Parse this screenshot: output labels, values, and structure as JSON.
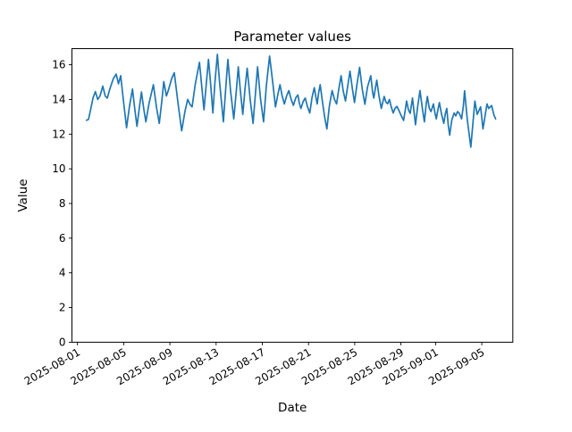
{
  "figure": {
    "background": "#ffffff",
    "text_color": "#000000"
  },
  "chart_data": {
    "type": "line",
    "title": "Parameter values",
    "xlabel": "Date",
    "ylabel": "Value",
    "line_color": "#1f77b4",
    "grid": false,
    "legend": "none",
    "ylim": [
      0,
      16.93
    ],
    "xlim_days_from_2025_08_01": [
      -0.45,
      37.7
    ],
    "y_ticks": [
      0,
      2,
      4,
      6,
      8,
      10,
      12,
      14,
      16
    ],
    "x_ticks": [
      {
        "label": "2025-08-01",
        "day": 0
      },
      {
        "label": "2025-08-05",
        "day": 4
      },
      {
        "label": "2025-08-09",
        "day": 8
      },
      {
        "label": "2025-08-13",
        "day": 12
      },
      {
        "label": "2025-08-17",
        "day": 16
      },
      {
        "label": "2025-08-21",
        "day": 20
      },
      {
        "label": "2025-08-25",
        "day": 24
      },
      {
        "label": "2025-08-29",
        "day": 28
      },
      {
        "label": "2025-09-01",
        "day": 31
      },
      {
        "label": "2025-09-05",
        "day": 35
      }
    ],
    "series": [
      {
        "name": "parameter-values",
        "x_unit": "days_from_2025-08-01",
        "points": [
          [
            0.78,
            12.8
          ],
          [
            0.95,
            12.85
          ],
          [
            1.1,
            13.3
          ],
          [
            1.35,
            14.1
          ],
          [
            1.55,
            14.45
          ],
          [
            1.75,
            14.0
          ],
          [
            1.95,
            14.2
          ],
          [
            2.19,
            14.77
          ],
          [
            2.4,
            14.2
          ],
          [
            2.58,
            14.08
          ],
          [
            2.8,
            14.6
          ],
          [
            3.1,
            15.2
          ],
          [
            3.35,
            15.46
          ],
          [
            3.55,
            14.9
          ],
          [
            3.74,
            15.37
          ],
          [
            4.0,
            13.8
          ],
          [
            4.25,
            12.37
          ],
          [
            4.5,
            13.6
          ],
          [
            4.76,
            14.6
          ],
          [
            4.95,
            13.5
          ],
          [
            5.15,
            12.45
          ],
          [
            5.35,
            13.5
          ],
          [
            5.54,
            14.43
          ],
          [
            5.75,
            13.4
          ],
          [
            5.92,
            12.71
          ],
          [
            6.2,
            13.8
          ],
          [
            6.57,
            14.85
          ],
          [
            6.85,
            13.5
          ],
          [
            7.08,
            12.62
          ],
          [
            7.3,
            13.9
          ],
          [
            7.47,
            15.03
          ],
          [
            7.7,
            14.2
          ],
          [
            7.9,
            14.6
          ],
          [
            8.15,
            15.2
          ],
          [
            8.38,
            15.54
          ],
          [
            8.7,
            13.8
          ],
          [
            9.02,
            12.19
          ],
          [
            9.3,
            13.3
          ],
          [
            9.54,
            14.0
          ],
          [
            9.75,
            13.7
          ],
          [
            9.92,
            13.57
          ],
          [
            10.2,
            14.9
          ],
          [
            10.56,
            16.14
          ],
          [
            10.75,
            14.8
          ],
          [
            10.95,
            13.4
          ],
          [
            11.15,
            14.9
          ],
          [
            11.34,
            16.31
          ],
          [
            11.55,
            14.7
          ],
          [
            11.72,
            13.22
          ],
          [
            11.9,
            15.0
          ],
          [
            12.11,
            16.6
          ],
          [
            12.3,
            15.0
          ],
          [
            12.63,
            12.71
          ],
          [
            12.85,
            14.8
          ],
          [
            13.02,
            16.31
          ],
          [
            13.25,
            14.5
          ],
          [
            13.53,
            12.88
          ],
          [
            13.75,
            14.5
          ],
          [
            13.92,
            15.88
          ],
          [
            14.1,
            14.5
          ],
          [
            14.31,
            13.14
          ],
          [
            14.5,
            14.6
          ],
          [
            14.69,
            15.8
          ],
          [
            14.95,
            14.0
          ],
          [
            15.2,
            12.62
          ],
          [
            15.4,
            14.3
          ],
          [
            15.59,
            15.88
          ],
          [
            15.85,
            14.0
          ],
          [
            16.11,
            12.71
          ],
          [
            16.35,
            14.8
          ],
          [
            16.63,
            16.5
          ],
          [
            16.9,
            15.0
          ],
          [
            17.14,
            13.57
          ],
          [
            17.35,
            14.3
          ],
          [
            17.53,
            14.85
          ],
          [
            17.72,
            14.2
          ],
          [
            17.91,
            13.74
          ],
          [
            18.1,
            14.2
          ],
          [
            18.3,
            14.51
          ],
          [
            18.5,
            14.0
          ],
          [
            18.69,
            13.66
          ],
          [
            18.9,
            14.1
          ],
          [
            19.08,
            14.26
          ],
          [
            19.2,
            13.8
          ],
          [
            19.34,
            13.48
          ],
          [
            19.55,
            13.9
          ],
          [
            19.72,
            14.08
          ],
          [
            19.9,
            13.6
          ],
          [
            20.11,
            13.22
          ],
          [
            20.3,
            14.1
          ],
          [
            20.5,
            14.68
          ],
          [
            20.65,
            14.1
          ],
          [
            20.75,
            13.74
          ],
          [
            20.88,
            14.4
          ],
          [
            21.01,
            14.85
          ],
          [
            21.2,
            13.9
          ],
          [
            21.4,
            12.97
          ],
          [
            21.59,
            12.3
          ],
          [
            21.8,
            13.6
          ],
          [
            22.04,
            14.51
          ],
          [
            22.25,
            14.0
          ],
          [
            22.43,
            13.74
          ],
          [
            22.62,
            14.6
          ],
          [
            22.82,
            15.37
          ],
          [
            23.0,
            14.5
          ],
          [
            23.2,
            13.91
          ],
          [
            23.4,
            14.8
          ],
          [
            23.59,
            15.63
          ],
          [
            23.8,
            14.6
          ],
          [
            23.98,
            13.82
          ],
          [
            24.2,
            14.9
          ],
          [
            24.42,
            15.85
          ],
          [
            24.65,
            14.6
          ],
          [
            24.88,
            13.72
          ],
          [
            25.1,
            14.7
          ],
          [
            25.39,
            15.37
          ],
          [
            25.55,
            14.4
          ],
          [
            25.65,
            14.08
          ],
          [
            25.8,
            14.7
          ],
          [
            25.91,
            15.11
          ],
          [
            26.1,
            14.2
          ],
          [
            26.3,
            13.48
          ],
          [
            26.45,
            13.9
          ],
          [
            26.55,
            14.17
          ],
          [
            26.7,
            13.85
          ],
          [
            26.85,
            13.75
          ],
          [
            27.0,
            14.0
          ],
          [
            27.15,
            13.6
          ],
          [
            27.33,
            13.22
          ],
          [
            27.5,
            13.5
          ],
          [
            27.65,
            13.6
          ],
          [
            27.8,
            13.4
          ],
          [
            28.0,
            13.1
          ],
          [
            28.23,
            12.79
          ],
          [
            28.4,
            13.5
          ],
          [
            28.49,
            13.91
          ],
          [
            28.65,
            13.4
          ],
          [
            28.8,
            13.2
          ],
          [
            29.0,
            14.08
          ],
          [
            29.13,
            13.3
          ],
          [
            29.26,
            12.54
          ],
          [
            29.45,
            13.6
          ],
          [
            29.65,
            14.51
          ],
          [
            29.85,
            13.5
          ],
          [
            30.03,
            12.71
          ],
          [
            30.18,
            13.7
          ],
          [
            30.29,
            14.17
          ],
          [
            30.45,
            13.5
          ],
          [
            30.6,
            13.3
          ],
          [
            30.81,
            13.74
          ],
          [
            30.95,
            13.2
          ],
          [
            31.06,
            12.88
          ],
          [
            31.2,
            13.4
          ],
          [
            31.33,
            13.82
          ],
          [
            31.5,
            13.2
          ],
          [
            31.71,
            12.62
          ],
          [
            31.85,
            13.2
          ],
          [
            31.97,
            13.48
          ],
          [
            32.1,
            12.5
          ],
          [
            32.22,
            11.94
          ],
          [
            32.4,
            12.8
          ],
          [
            32.61,
            13.22
          ],
          [
            32.75,
            13.05
          ],
          [
            32.9,
            13.3
          ],
          [
            33.05,
            13.2
          ],
          [
            33.25,
            12.88
          ],
          [
            33.4,
            13.6
          ],
          [
            33.51,
            14.5
          ],
          [
            33.75,
            12.8
          ],
          [
            34.05,
            11.25
          ],
          [
            34.4,
            13.91
          ],
          [
            34.6,
            13.14
          ],
          [
            34.9,
            13.57
          ],
          [
            35.1,
            12.3
          ],
          [
            35.45,
            13.74
          ],
          [
            35.6,
            13.48
          ],
          [
            35.85,
            13.65
          ],
          [
            36.05,
            13.1
          ],
          [
            36.2,
            12.88
          ]
        ]
      }
    ]
  }
}
